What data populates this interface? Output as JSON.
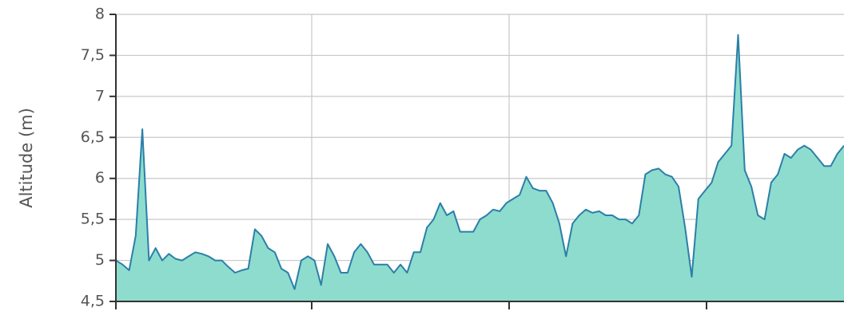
{
  "chart_data": {
    "type": "area",
    "y_label": "Altitude (m)",
    "values": [
      5.0,
      4.95,
      4.88,
      5.3,
      6.6,
      5.0,
      5.15,
      5.0,
      5.08,
      5.02,
      5.0,
      5.05,
      5.1,
      5.08,
      5.05,
      5.0,
      5.0,
      4.92,
      4.85,
      4.88,
      4.9,
      5.38,
      5.3,
      5.15,
      5.1,
      4.9,
      4.85,
      4.65,
      5.0,
      5.05,
      5.0,
      4.7,
      5.2,
      5.05,
      4.85,
      4.85,
      5.1,
      5.2,
      5.1,
      4.95,
      4.95,
      4.95,
      4.85,
      4.95,
      4.85,
      5.1,
      5.1,
      5.4,
      5.5,
      5.7,
      5.55,
      5.6,
      5.35,
      5.35,
      5.35,
      5.5,
      5.55,
      5.62,
      5.6,
      5.7,
      5.75,
      5.8,
      6.02,
      5.88,
      5.85,
      5.85,
      5.7,
      5.45,
      5.05,
      5.45,
      5.55,
      5.62,
      5.58,
      5.6,
      5.55,
      5.55,
      5.5,
      5.5,
      5.45,
      5.55,
      6.05,
      6.1,
      6.12,
      6.05,
      6.02,
      5.9,
      5.4,
      4.8,
      5.75,
      5.85,
      5.95,
      6.2,
      6.3,
      6.4,
      7.75,
      6.1,
      5.9,
      5.55,
      5.5,
      5.95,
      6.05,
      6.3,
      6.25,
      6.35,
      6.4,
      6.35,
      6.25,
      6.15,
      6.15,
      6.3,
      6.4
    ],
    "line_color": "#2b7fa8",
    "fill_color": "#8edccd",
    "ylim": [
      4.5,
      8
    ],
    "yticks": [
      {
        "value": 4.5,
        "label": "4,5"
      },
      5,
      {
        "value": 5.5,
        "label": "5,5"
      },
      6,
      {
        "value": 6.5,
        "label": "6,5"
      },
      7,
      {
        "value": 7.5,
        "label": "7,5"
      },
      8
    ],
    "grid": true
  }
}
